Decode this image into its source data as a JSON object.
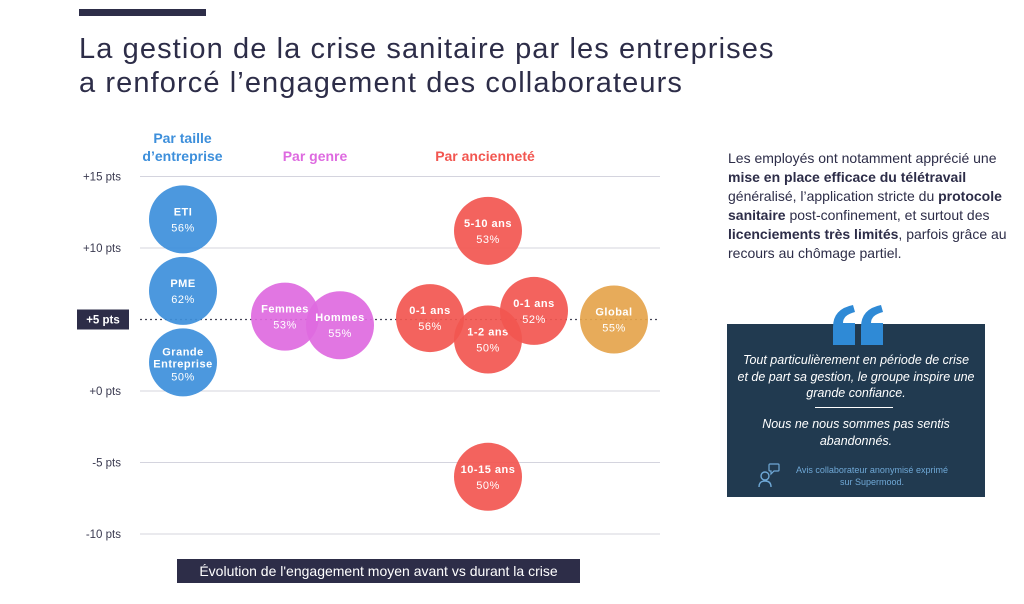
{
  "title_line1": "La gestion de la crise sanitaire par les entreprises",
  "title_line2": "a renforcé l’engagement des collaborateurs",
  "groups": {
    "taille_line1": "Par taille",
    "taille_line2": "d’entreprise",
    "genre": "Par genre",
    "anciennete": "Par ancienneté"
  },
  "caption": "Évolution de l'engagement moyen avant vs durant la crise",
  "side_text": {
    "p1": "Les employés ont notamment apprécié une ",
    "b1": "mise en place efficace du télétravail",
    "p2": " généralisé, l’application stricte du ",
    "b2": "protocole sanitaire",
    "p3": " post-confinement, et surtout des ",
    "b3": "licenciements très limités",
    "p4": ", parfois grâce au recours au chômage partiel."
  },
  "quote": {
    "text1": "Tout particulièrement en période de crise et de part sa gestion, le groupe inspire une grande confiance.",
    "text2": "Nous ne nous sommes pas sentis abandonnés.",
    "attribution_line1": "Avis collaborateur anonymisé exprimé",
    "attribution_line2": "sur  Supermood.",
    "icons": [
      "quote-mark-icon",
      "person-speech-icon"
    ],
    "colors": {
      "box": "#213a50",
      "quote_mark": "#2f8ad6",
      "attribution": "#6fa8d6"
    }
  },
  "chart_data": {
    "type": "scatter",
    "y_unit": "pts",
    "ylim": [
      -10,
      15
    ],
    "y_ticks": [
      {
        "value": 15,
        "label": "+15 pts"
      },
      {
        "value": 10,
        "label": "+10 pts"
      },
      {
        "value": 5,
        "label": "+5 pts",
        "highlight": true
      },
      {
        "value": 0,
        "label": "+0 pts"
      },
      {
        "value": -5,
        "label": "-5 pts"
      },
      {
        "value": -10,
        "label": "-10 pts"
      }
    ],
    "reference_line": 5,
    "grid": true,
    "series": [
      {
        "group": "Par taille d’entreprise",
        "color": "#3d8fdb",
        "points": [
          {
            "label": "ETI",
            "value_label": "56%",
            "y": 12
          },
          {
            "label": "PME",
            "value_label": "62%",
            "y": 7
          },
          {
            "label": "Grande Entreprise",
            "value_label": "50%",
            "y": 2
          }
        ]
      },
      {
        "group": "Par genre",
        "color": "#de6ae0",
        "points": [
          {
            "label": "Femmes",
            "value_label": "53%",
            "y": 5.2
          },
          {
            "label": "Hommes",
            "value_label": "55%",
            "y": 4.6
          }
        ]
      },
      {
        "group": "Par ancienneté",
        "color": "#f25650",
        "points": [
          {
            "label": "5-10 ans",
            "value_label": "53%",
            "y": 11.2
          },
          {
            "label": "0-1 ans",
            "value_label": "56%",
            "y": 5.1
          },
          {
            "label": "1-2 ans",
            "value_label": "50%",
            "y": 3.6
          },
          {
            "label": "0-1 ans",
            "value_label": "52%",
            "y": 5.6
          },
          {
            "label": "10-15 ans",
            "value_label": "50%",
            "y": -6
          }
        ]
      },
      {
        "group": "Global",
        "color": "#e5a44c",
        "points": [
          {
            "label": "Global",
            "value_label": "55%",
            "y": 5
          }
        ]
      }
    ]
  }
}
